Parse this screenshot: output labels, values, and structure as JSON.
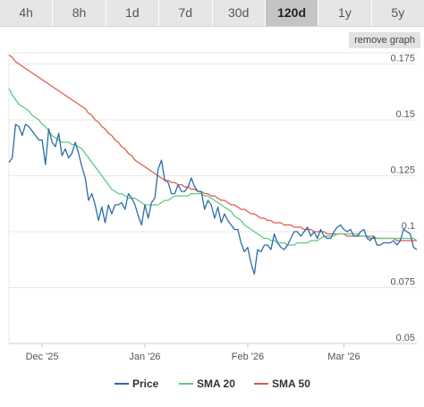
{
  "tabs": [
    {
      "label": "4h",
      "active": false
    },
    {
      "label": "8h",
      "active": false
    },
    {
      "label": "1d",
      "active": false
    },
    {
      "label": "7d",
      "active": false
    },
    {
      "label": "30d",
      "active": false
    },
    {
      "label": "120d",
      "active": true
    },
    {
      "label": "1y",
      "active": false
    },
    {
      "label": "5y",
      "active": false
    }
  ],
  "remove_graph_label": "remove graph",
  "colors": {
    "price": "#2b6ca8",
    "sma20": "#5cc97f",
    "sma50": "#e0584d",
    "grid": "#e8e8e8"
  },
  "chart_data": {
    "type": "line",
    "y_ticks": [
      "0.05",
      "0.075",
      "0.1",
      "0.125",
      "0.15",
      "0.175"
    ],
    "y_range": [
      0.05,
      0.18
    ],
    "x_ticks": [
      "Dec '25",
      "Jan '26",
      "Feb '26",
      "Mar '26"
    ],
    "x_tick_index": [
      10,
      41,
      72,
      101
    ],
    "grid": true,
    "legend_position": "bottom",
    "series": [
      {
        "name": "Price",
        "values": [
          0.131,
          0.133,
          0.148,
          0.147,
          0.143,
          0.148,
          0.147,
          0.145,
          0.143,
          0.141,
          0.141,
          0.13,
          0.146,
          0.14,
          0.138,
          0.144,
          0.134,
          0.137,
          0.133,
          0.135,
          0.14,
          0.135,
          0.129,
          0.124,
          0.114,
          0.117,
          0.112,
          0.105,
          0.111,
          0.104,
          0.112,
          0.108,
          0.112,
          0.112,
          0.113,
          0.11,
          0.117,
          0.115,
          0.112,
          0.107,
          0.103,
          0.112,
          0.106,
          0.113,
          0.115,
          0.128,
          0.132,
          0.123,
          0.122,
          0.117,
          0.117,
          0.121,
          0.118,
          0.118,
          0.12,
          0.124,
          0.12,
          0.118,
          0.118,
          0.11,
          0.114,
          0.112,
          0.106,
          0.111,
          0.104,
          0.108,
          0.105,
          0.103,
          0.101,
          0.101,
          0.095,
          0.091,
          0.093,
          0.086,
          0.081,
          0.092,
          0.091,
          0.094,
          0.094,
          0.092,
          0.099,
          0.095,
          0.093,
          0.092,
          0.094,
          0.097,
          0.1,
          0.1,
          0.098,
          0.1,
          0.102,
          0.098,
          0.1,
          0.097,
          0.101,
          0.098,
          0.097,
          0.097,
          0.1,
          0.102,
          0.103,
          0.101,
          0.1,
          0.101,
          0.098,
          0.098,
          0.1,
          0.101,
          0.097,
          0.096,
          0.098,
          0.094,
          0.094,
          0.095,
          0.095,
          0.095,
          0.096,
          0.094,
          0.096,
          0.101,
          0.1,
          0.099,
          0.093,
          0.092
        ],
        "color": "#2b6ca8"
      },
      {
        "name": "SMA 20",
        "values": [
          0.164,
          0.161,
          0.159,
          0.157,
          0.156,
          0.155,
          0.154,
          0.152,
          0.151,
          0.15,
          0.148,
          0.147,
          0.145,
          0.143,
          0.142,
          0.141,
          0.14,
          0.14,
          0.14,
          0.139,
          0.139,
          0.138,
          0.137,
          0.135,
          0.133,
          0.131,
          0.129,
          0.127,
          0.125,
          0.123,
          0.121,
          0.119,
          0.118,
          0.117,
          0.117,
          0.116,
          0.115,
          0.115,
          0.115,
          0.114,
          0.113,
          0.112,
          0.112,
          0.112,
          0.112,
          0.112,
          0.113,
          0.114,
          0.114,
          0.115,
          0.116,
          0.116,
          0.116,
          0.116,
          0.116,
          0.117,
          0.117,
          0.117,
          0.117,
          0.116,
          0.116,
          0.115,
          0.114,
          0.113,
          0.112,
          0.111,
          0.11,
          0.109,
          0.107,
          0.106,
          0.105,
          0.103,
          0.102,
          0.101,
          0.1,
          0.099,
          0.098,
          0.097,
          0.097,
          0.096,
          0.096,
          0.095,
          0.095,
          0.095,
          0.094,
          0.094,
          0.094,
          0.095,
          0.095,
          0.095,
          0.095,
          0.096,
          0.096,
          0.096,
          0.097,
          0.098,
          0.098,
          0.098,
          0.098,
          0.099,
          0.099,
          0.099,
          0.099,
          0.099,
          0.099,
          0.099,
          0.098,
          0.098,
          0.098,
          0.098,
          0.098,
          0.097,
          0.097,
          0.097,
          0.097,
          0.097,
          0.097,
          0.097,
          0.097,
          0.097,
          0.097,
          0.097,
          0.097,
          0.096
        ],
        "color": "#5cc97f"
      },
      {
        "name": "SMA 50",
        "values": [
          0.179,
          0.178,
          0.176,
          0.175,
          0.174,
          0.173,
          0.172,
          0.171,
          0.17,
          0.169,
          0.168,
          0.167,
          0.166,
          0.165,
          0.164,
          0.163,
          0.162,
          0.161,
          0.16,
          0.159,
          0.158,
          0.157,
          0.156,
          0.155,
          0.153,
          0.152,
          0.15,
          0.149,
          0.147,
          0.146,
          0.144,
          0.143,
          0.141,
          0.14,
          0.138,
          0.137,
          0.135,
          0.134,
          0.132,
          0.131,
          0.13,
          0.129,
          0.128,
          0.127,
          0.126,
          0.125,
          0.124,
          0.123,
          0.123,
          0.122,
          0.122,
          0.121,
          0.121,
          0.12,
          0.12,
          0.119,
          0.119,
          0.118,
          0.118,
          0.117,
          0.117,
          0.116,
          0.116,
          0.115,
          0.114,
          0.114,
          0.113,
          0.112,
          0.112,
          0.111,
          0.11,
          0.11,
          0.109,
          0.108,
          0.108,
          0.107,
          0.106,
          0.106,
          0.105,
          0.105,
          0.104,
          0.104,
          0.104,
          0.103,
          0.103,
          0.103,
          0.102,
          0.102,
          0.102,
          0.101,
          0.101,
          0.101,
          0.1,
          0.1,
          0.1,
          0.1,
          0.099,
          0.099,
          0.099,
          0.099,
          0.099,
          0.099,
          0.098,
          0.098,
          0.098,
          0.098,
          0.098,
          0.098,
          0.098,
          0.097,
          0.097,
          0.097,
          0.097,
          0.097,
          0.097,
          0.097,
          0.097,
          0.096,
          0.096,
          0.096,
          0.096,
          0.096,
          0.096,
          0.096
        ],
        "color": "#e0584d"
      }
    ]
  }
}
